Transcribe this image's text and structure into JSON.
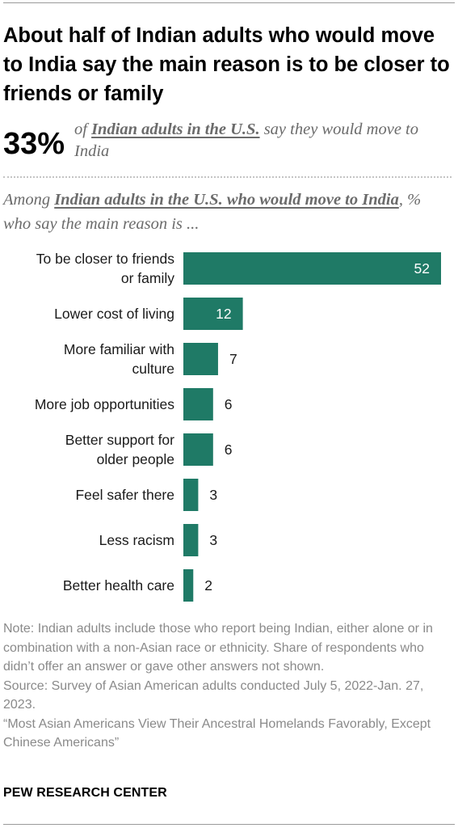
{
  "title": "About half of Indian adults who would move to India say the main reason is to be closer to friends or family",
  "highlight": {
    "value": "33%",
    "prefix": "of ",
    "emphasis": "Indian adults in the U.S.",
    "suffix": " say they would move to India"
  },
  "subtitle": {
    "prefix": "Among ",
    "emphasis": "Indian adults in the U.S. who would move to India",
    "suffix": ", % who say the main reason is ..."
  },
  "colors": {
    "bar": "#1f7a66"
  },
  "chart_data": {
    "type": "bar",
    "orientation": "horizontal",
    "categories": [
      [
        "To be closer to friends",
        "or family"
      ],
      [
        "Lower cost of living"
      ],
      [
        "More familiar with",
        "culture"
      ],
      [
        "More job opportunities"
      ],
      [
        "Better support for",
        "older people"
      ],
      [
        "Feel safer there"
      ],
      [
        "Less racism"
      ],
      [
        "Better health care"
      ]
    ],
    "values": [
      52,
      12,
      7,
      6,
      6,
      3,
      3,
      2
    ],
    "xlim": [
      0,
      52
    ],
    "grid": false,
    "legend": "none"
  },
  "notes": [
    "Note: Indian adults include those who report being Indian, either alone or in combination with a non-Asian race or ethnicity. Share of respondents who didn’t offer an answer or gave other answers not shown.",
    "Source: Survey of Asian American adults conducted July 5, 2022-Jan. 27, 2023.",
    "“Most Asian Americans View Their Ancestral Homelands Favorably, Except Chinese Americans”"
  ],
  "source_org": "PEW RESEARCH CENTER"
}
